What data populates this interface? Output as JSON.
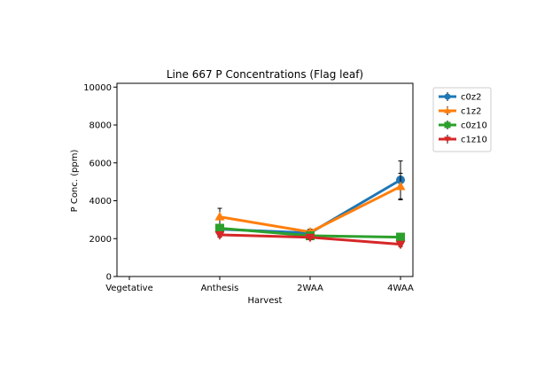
{
  "chart_data": {
    "type": "line",
    "title": "Line 667 P Concentrations (Flag leaf)",
    "xlabel": "Harvest",
    "ylabel": "P Conc. (ppm)",
    "categories": [
      "Vegetative",
      "Anthesis",
      "2WAA",
      "4WAA"
    ],
    "ylim": [
      0,
      10200
    ],
    "yticks": [
      0,
      2000,
      4000,
      6000,
      8000,
      10000
    ],
    "yticklabels": [
      "0",
      "2000",
      "4000",
      "6000",
      "8000",
      "10000"
    ],
    "grid": false,
    "legend_position": "outside-top-right",
    "series": [
      {
        "name": "c0z2",
        "color": "#1f77b4",
        "marker": "circle",
        "values": [
          null,
          2500,
          2300,
          5100
        ],
        "errors": [
          null,
          200,
          150,
          1000
        ]
      },
      {
        "name": "c1z2",
        "color": "#ff7f0e",
        "marker": "triangle-up",
        "values": [
          null,
          3150,
          2350,
          4750
        ],
        "errors": [
          null,
          450,
          150,
          700
        ]
      },
      {
        "name": "c0z10",
        "color": "#2ca02c",
        "marker": "square",
        "values": [
          null,
          2550,
          2150,
          2080
        ],
        "errors": [
          null,
          120,
          100,
          120
        ]
      },
      {
        "name": "c1z10",
        "color": "#d62728",
        "marker": "triangle-down",
        "values": [
          null,
          2200,
          2070,
          1700
        ],
        "errors": [
          null,
          120,
          100,
          120
        ]
      }
    ]
  }
}
